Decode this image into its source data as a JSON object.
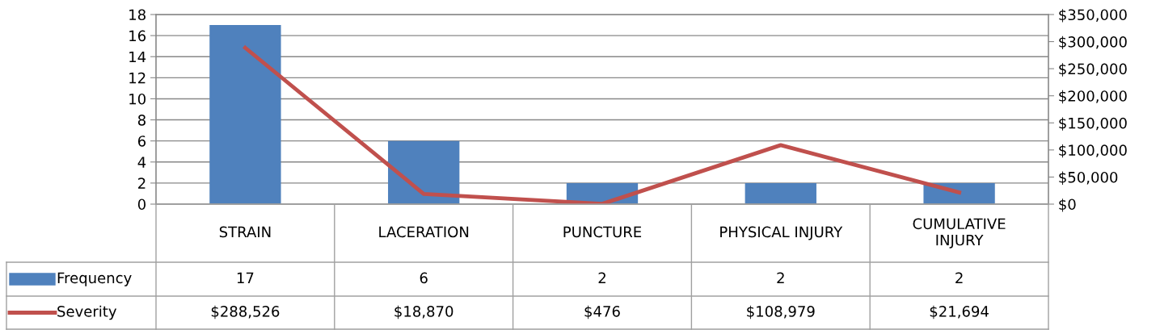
{
  "chart_data": {
    "type": "bar",
    "categories": [
      "STRAIN",
      "LACERATION",
      "PUNCTURE",
      "PHYSICAL INJURY",
      "CUMULATIVE\nINJURY"
    ],
    "series": [
      {
        "name": "Frequency",
        "color": "#4f81bd",
        "values": [
          17,
          6,
          2,
          2,
          2
        ],
        "value_labels": [
          "17",
          "6",
          "2",
          "2",
          "2"
        ]
      },
      {
        "name": "Severity",
        "type": "line",
        "axis": "y2",
        "color": "#c0504d",
        "values": [
          288526,
          18870,
          476,
          108979,
          21694
        ],
        "value_labels": [
          "$288,526",
          "$18,870",
          "$476",
          "$108,979",
          "$21,694"
        ]
      }
    ],
    "ylim": [
      0,
      18
    ],
    "yticks": [
      0,
      2,
      4,
      6,
      8,
      10,
      12,
      14,
      16,
      18
    ],
    "y2lim": [
      0,
      350000
    ],
    "y2ticks": [
      {
        "value": 0,
        "label": "$0"
      },
      {
        "value": 50000,
        "label": "$50,000"
      },
      {
        "value": 100000,
        "label": "$100,000"
      },
      {
        "value": 150000,
        "label": "$150,000"
      },
      {
        "value": 200000,
        "label": "$200,000"
      },
      {
        "value": 250000,
        "label": "$250,000"
      },
      {
        "value": 300000,
        "label": "$300,000"
      },
      {
        "value": 350000,
        "label": "$350,000"
      }
    ],
    "grid": "y",
    "legend": "bottom",
    "marker": "none",
    "line_style": "solid"
  }
}
